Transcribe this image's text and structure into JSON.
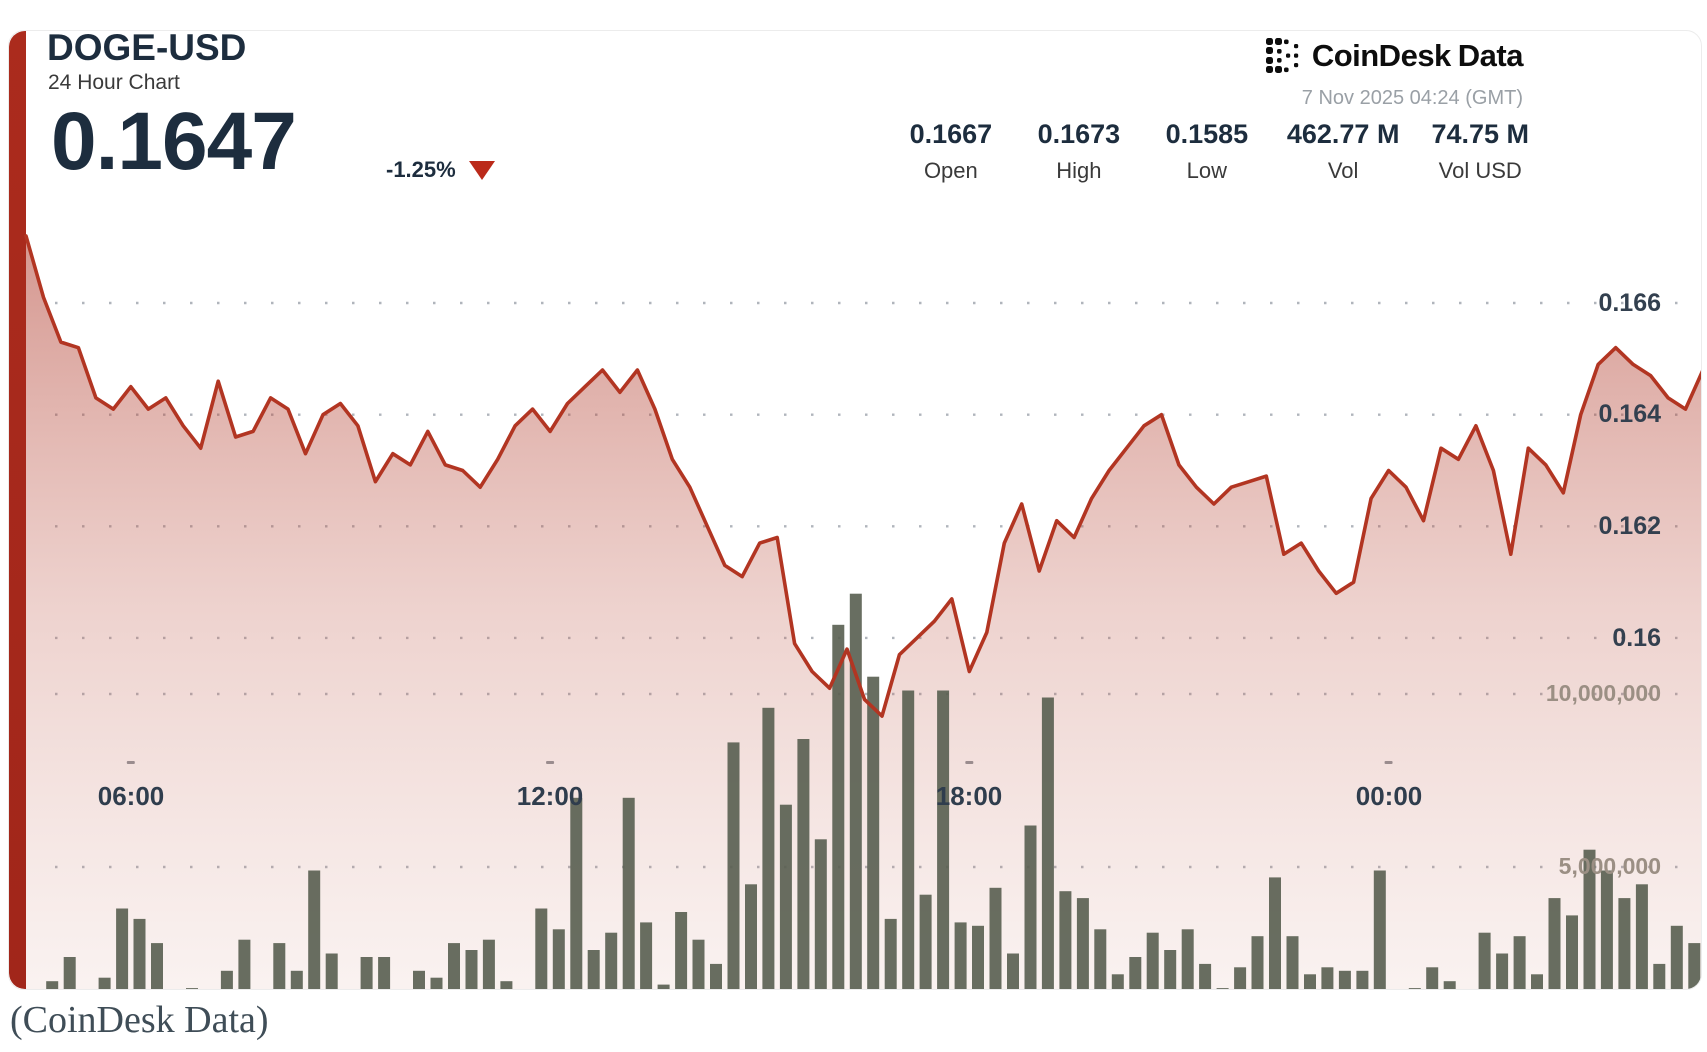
{
  "page": {
    "caption": "(CoinDesk Data)"
  },
  "header": {
    "symbol": "DOGE-USD",
    "subtitle": "24 Hour Chart",
    "price": "0.1647",
    "change": "-1.25%",
    "change_direction": "down",
    "brand": {
      "name_primary": "CoinDesk",
      "name_secondary": "Data"
    },
    "timestamp": "7 Nov 2025 04:24 (GMT)",
    "stats": [
      {
        "value": "0.1667",
        "label": "Open"
      },
      {
        "value": "0.1673",
        "label": "High"
      },
      {
        "value": "0.1585",
        "label": "Low"
      },
      {
        "value": "462.77 M",
        "label": "Vol"
      },
      {
        "value": "74.75 M",
        "label": "Vol USD"
      }
    ]
  },
  "chart_data": {
    "type": "area",
    "pair": "DOGE-USD",
    "period": "24 hours",
    "title": "DOGE-USD 24 Hour Chart",
    "interval_minutes": 15,
    "start_time": "04:30",
    "open": 0.1667,
    "high": 0.1673,
    "low": 0.1585,
    "last": 0.1647,
    "change_pct": -1.25,
    "grid": "dotted-horizontal",
    "legend_position": "none",
    "price_axis": {
      "side": "right",
      "ticks": [
        "0.166",
        "0.164",
        "0.162",
        "0.16"
      ],
      "tick_values": [
        0.166,
        0.164,
        0.162,
        0.16
      ],
      "range_shown": [
        0.1585,
        0.1675
      ]
    },
    "volume_axis": {
      "side": "right",
      "ticks": [
        "10,000,000",
        "5,000,000"
      ],
      "tick_values": [
        10000000,
        5000000
      ]
    },
    "x_ticks": [
      {
        "label": "06:00",
        "index": 6
      },
      {
        "label": "12:00",
        "index": 30
      },
      {
        "label": "18:00",
        "index": 54
      },
      {
        "label": "00:00",
        "index": 78
      }
    ],
    "price_series": [
      0.1672,
      0.1661,
      0.1653,
      0.1652,
      0.1643,
      0.1641,
      0.1645,
      0.1641,
      0.1643,
      0.1638,
      0.1634,
      0.1646,
      0.1636,
      0.1637,
      0.1643,
      0.1641,
      0.1633,
      0.164,
      0.1642,
      0.1638,
      0.1628,
      0.1633,
      0.1631,
      0.1637,
      0.1631,
      0.163,
      0.1627,
      0.1632,
      0.1638,
      0.1641,
      0.1637,
      0.1642,
      0.1645,
      0.1648,
      0.1644,
      0.1648,
      0.1641,
      0.1632,
      0.1627,
      0.162,
      0.1613,
      0.1611,
      0.1617,
      0.1618,
      0.1599,
      0.1594,
      0.1591,
      0.1598,
      0.1589,
      0.1586,
      0.1597,
      0.16,
      0.1603,
      0.1607,
      0.1594,
      0.1601,
      0.1617,
      0.1624,
      0.1612,
      0.1621,
      0.1618,
      0.1625,
      0.163,
      0.1634,
      0.1638,
      0.164,
      0.1631,
      0.1627,
      0.1624,
      0.1627,
      0.1628,
      0.1629,
      0.1615,
      0.1617,
      0.1612,
      0.1608,
      0.161,
      0.1625,
      0.163,
      0.1627,
      0.1621,
      0.1634,
      0.1632,
      0.1638,
      0.163,
      0.1615,
      0.1634,
      0.1631,
      0.1626,
      0.164,
      0.1649,
      0.1652,
      0.1649,
      0.1647,
      0.1643,
      0.1641,
      0.1648
    ],
    "volume_series_millions": [
      0.3,
      1.7,
      2.4,
      0.3,
      1.8,
      3.8,
      3.5,
      2.8,
      0.2,
      1.5,
      0.4,
      2.0,
      2.9,
      0.3,
      2.8,
      2.0,
      4.9,
      2.5,
      0.2,
      2.4,
      2.4,
      0.4,
      2.0,
      1.8,
      2.8,
      2.6,
      2.9,
      1.7,
      0.3,
      3.8,
      3.2,
      7.0,
      2.6,
      3.1,
      7.0,
      3.4,
      1.6,
      3.7,
      2.9,
      2.2,
      8.6,
      4.5,
      9.6,
      6.8,
      8.7,
      5.8,
      12.0,
      12.9,
      10.5,
      3.5,
      10.1,
      4.2,
      10.1,
      3.4,
      3.3,
      4.4,
      2.5,
      6.2,
      9.9,
      4.3,
      4.1,
      3.2,
      1.9,
      2.4,
      3.1,
      2.6,
      3.2,
      2.2,
      1.5,
      2.1,
      3.0,
      4.7,
      3.0,
      1.9,
      2.1,
      2.0,
      2.0,
      4.9,
      0.3,
      1.5,
      2.1,
      1.7,
      1.4,
      3.1,
      2.5,
      3.0,
      1.9,
      4.1,
      3.6,
      5.5,
      4.9,
      4.1,
      4.5,
      2.2,
      3.3,
      2.8
    ],
    "colors": {
      "line": "#b23522",
      "area_top": "rgba(170,45,30,0.50)",
      "area_mid": "rgba(193,95,80,0.28)",
      "area_bottom": "rgba(205,130,115,0.10)",
      "volume_bar": "#585e50",
      "accent_bar": "#a8291b",
      "axis_text": "#33404f",
      "muted_axis_text": "#9b8f84",
      "grid_dot": "#a3a9b1",
      "negative": "#bb2a1a",
      "heading_text": "#1d2d3e"
    }
  }
}
